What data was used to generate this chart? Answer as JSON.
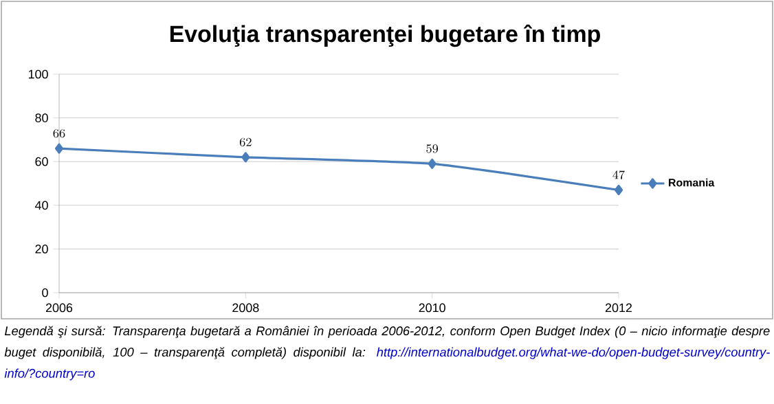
{
  "chart_data": {
    "type": "line",
    "title": "Evoluţia transparenţei bugetare în timp",
    "x": [
      2006,
      2008,
      2010,
      2012
    ],
    "series": [
      {
        "name": "Romania",
        "color": "#4a7ebb",
        "values": [
          66,
          62,
          59,
          47
        ]
      }
    ],
    "xlim": [
      2006,
      2012
    ],
    "xticks": [
      2006,
      2008,
      2010,
      2012
    ],
    "ylim": [
      0,
      100
    ],
    "yticks": [
      0,
      20,
      40,
      60,
      80,
      100
    ],
    "grid": "y",
    "legend": "right",
    "marker": "diamond",
    "line_style": "solid",
    "data_labels": true,
    "annotations": [
      "Legendă şi sursă: Transparenţa bugetară a României în perioada 2006-2012, conform Open Budget Index (0 – nicio informaţie despre buget disponibilă, 100 – transparenţă completă) disponibil la:",
      "http://internationalbudget.org/what-we-do/open-budget-survey/country-info/?country=ro"
    ]
  }
}
